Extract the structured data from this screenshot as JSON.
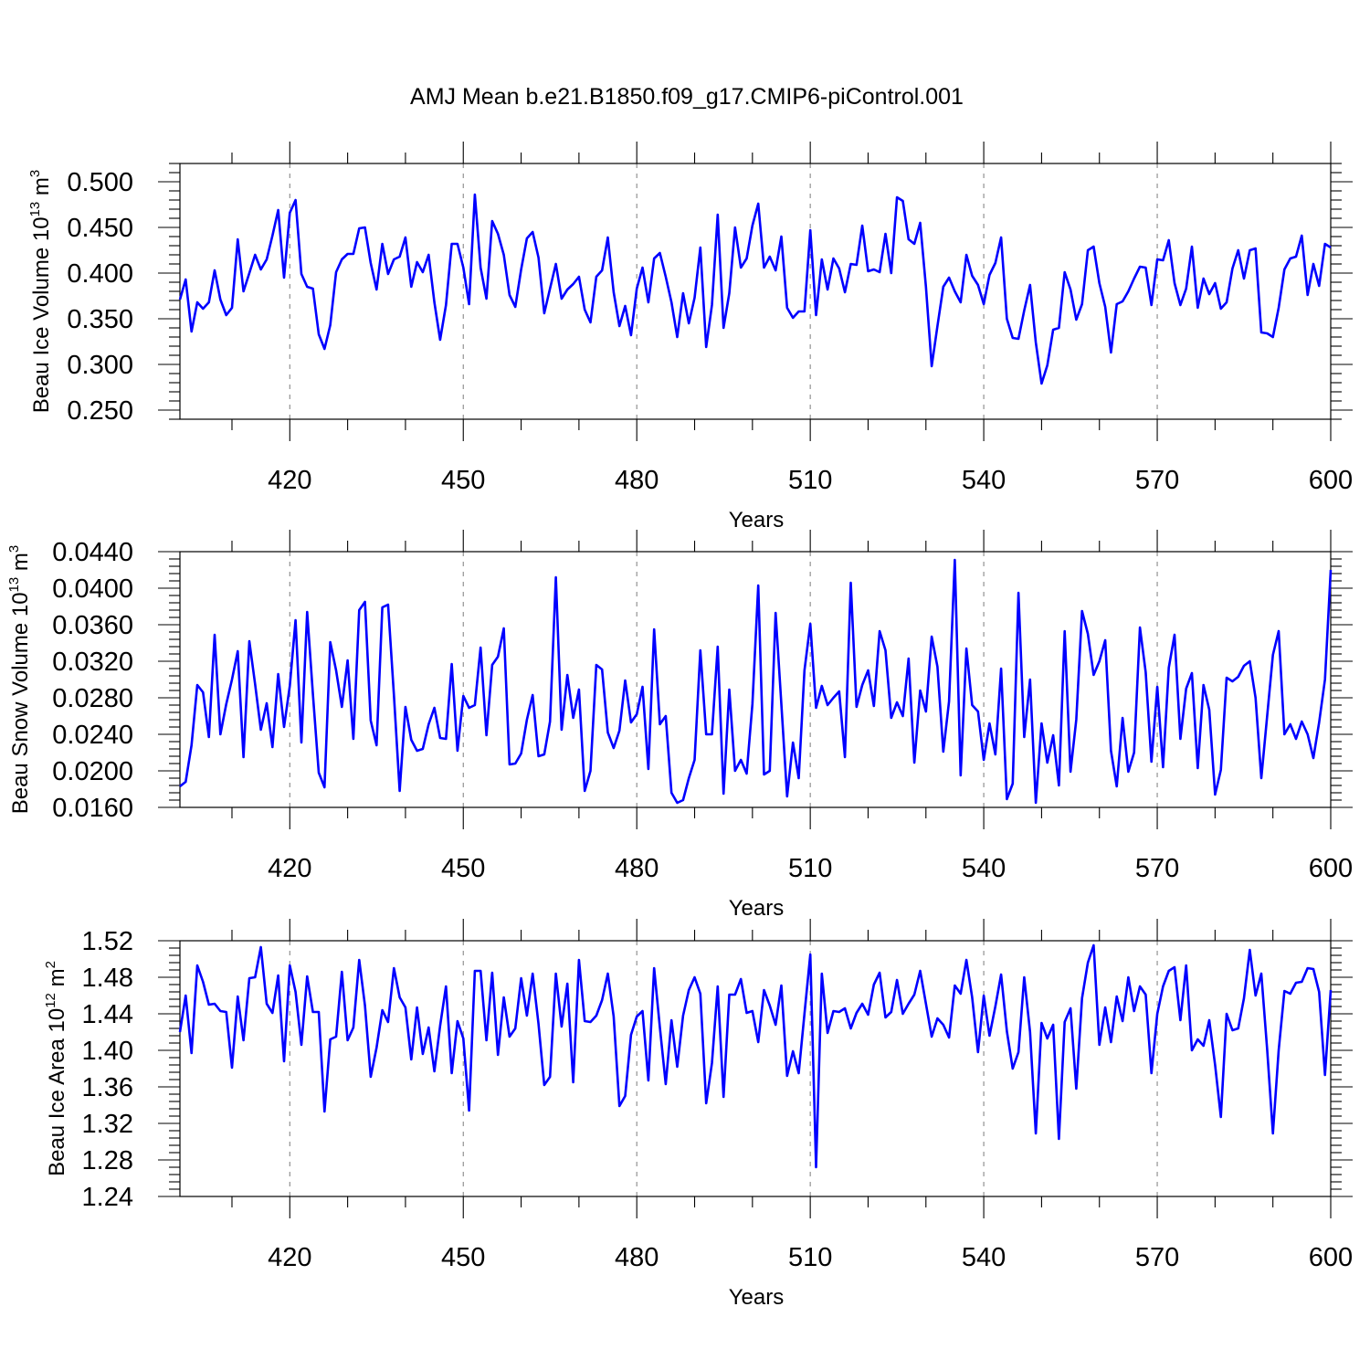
{
  "title": "AMJ Mean b.e21.B1850.f09_g17.CMIP6-piControl.001",
  "chart_data": [
    {
      "type": "line",
      "ylabel": "Beau Ice Volume 10^13 m^3",
      "ylabel_base": "Beau Ice Volume 10",
      "ylabel_exp": "13",
      "ylabel_unit": " m",
      "ylabel_unit_exp": "3",
      "xlabel": "Years",
      "xlim": [
        401,
        600
      ],
      "ylim": [
        0.24,
        0.52
      ],
      "yticks": [
        0.25,
        0.3,
        0.35,
        0.4,
        0.45,
        0.5
      ],
      "yticklabels": [
        "0.250",
        "0.300",
        "0.350",
        "0.400",
        "0.450",
        "0.500"
      ],
      "xticks": [
        420,
        450,
        480,
        510,
        540,
        570,
        600
      ],
      "xticklabels": [
        "420",
        "450",
        "480",
        "510",
        "540",
        "570",
        "600"
      ],
      "grid": "dashed vertical at x ticks",
      "color": "#0000ff",
      "series": [
        {
          "x_start": 401,
          "values": [
            0.371,
            0.393,
            0.336,
            0.368,
            0.361,
            0.368,
            0.403,
            0.371,
            0.354,
            0.362,
            0.437,
            0.38,
            0.4,
            0.42,
            0.404,
            0.415,
            0.441,
            0.469,
            0.395,
            0.466,
            0.48,
            0.399,
            0.385,
            0.383,
            0.333,
            0.317,
            0.343,
            0.401,
            0.415,
            0.421,
            0.421,
            0.449,
            0.45,
            0.411,
            0.382,
            0.432,
            0.399,
            0.415,
            0.418,
            0.439,
            0.385,
            0.412,
            0.401,
            0.42,
            0.368,
            0.327,
            0.365,
            0.432,
            0.432,
            0.406,
            0.366,
            0.486,
            0.406,
            0.372,
            0.457,
            0.443,
            0.42,
            0.376,
            0.363,
            0.404,
            0.438,
            0.445,
            0.417,
            0.356,
            0.383,
            0.41,
            0.372,
            0.382,
            0.388,
            0.396,
            0.36,
            0.346,
            0.396,
            0.403,
            0.439,
            0.379,
            0.342,
            0.364,
            0.332,
            0.383,
            0.406,
            0.368,
            0.416,
            0.422,
            0.396,
            0.368,
            0.33,
            0.378,
            0.345,
            0.373,
            0.428,
            0.319,
            0.365,
            0.464,
            0.34,
            0.378,
            0.45,
            0.406,
            0.416,
            0.452,
            0.476,
            0.406,
            0.418,
            0.403,
            0.44,
            0.362,
            0.351,
            0.358,
            0.358,
            0.447,
            0.354,
            0.415,
            0.382,
            0.416,
            0.405,
            0.379,
            0.41,
            0.409,
            0.452,
            0.402,
            0.404,
            0.401,
            0.443,
            0.4,
            0.483,
            0.479,
            0.437,
            0.432,
            0.455,
            0.385,
            0.298,
            0.342,
            0.385,
            0.395,
            0.38,
            0.368,
            0.42,
            0.397,
            0.387,
            0.366,
            0.398,
            0.411,
            0.439,
            0.35,
            0.329,
            0.328,
            0.359,
            0.387,
            0.324,
            0.279,
            0.299,
            0.338,
            0.34,
            0.401,
            0.382,
            0.349,
            0.366,
            0.425,
            0.429,
            0.389,
            0.363,
            0.313,
            0.366,
            0.369,
            0.38,
            0.394,
            0.407,
            0.406,
            0.365,
            0.415,
            0.414,
            0.436,
            0.389,
            0.365,
            0.383,
            0.429,
            0.362,
            0.394,
            0.377,
            0.389,
            0.361,
            0.368,
            0.405,
            0.425,
            0.394,
            0.425,
            0.427,
            0.335,
            0.334,
            0.33,
            0.362,
            0.404,
            0.416,
            0.418,
            0.441,
            0.376,
            0.41,
            0.386,
            0.432,
            0.428
          ]
        }
      ]
    },
    {
      "type": "line",
      "ylabel": "Beau Snow Volume 10^13 m^3",
      "ylabel_base": "Beau Snow Volume 10",
      "ylabel_exp": "13",
      "ylabel_unit": " m",
      "ylabel_unit_exp": "3",
      "xlabel": "Years",
      "xlim": [
        401,
        600
      ],
      "ylim": [
        0.016,
        0.044
      ],
      "yticks": [
        0.016,
        0.02,
        0.024,
        0.028,
        0.032,
        0.036,
        0.04,
        0.044
      ],
      "yticklabels": [
        "0.0160",
        "0.0200",
        "0.0240",
        "0.0280",
        "0.0320",
        "0.0360",
        "0.0400",
        "0.0440"
      ],
      "xticks": [
        420,
        450,
        480,
        510,
        540,
        570,
        600
      ],
      "xticklabels": [
        "420",
        "450",
        "480",
        "510",
        "540",
        "570",
        "600"
      ],
      "grid": "dashed vertical at x ticks",
      "color": "#0000ff",
      "series": [
        {
          "x_start": 401,
          "values": [
            0.0183,
            0.0188,
            0.0228,
            0.0294,
            0.0286,
            0.0237,
            0.0349,
            0.024,
            0.0273,
            0.03,
            0.0331,
            0.0215,
            0.0342,
            0.0295,
            0.0245,
            0.0274,
            0.0226,
            0.0306,
            0.0248,
            0.0293,
            0.0365,
            0.0231,
            0.0374,
            0.0284,
            0.0198,
            0.0182,
            0.0341,
            0.031,
            0.027,
            0.0321,
            0.0235,
            0.0376,
            0.0385,
            0.0255,
            0.0228,
            0.0379,
            0.0382,
            0.0283,
            0.0178,
            0.027,
            0.0234,
            0.0222,
            0.0224,
            0.0251,
            0.0269,
            0.0236,
            0.0235,
            0.0317,
            0.0222,
            0.0282,
            0.0269,
            0.0272,
            0.0335,
            0.0239,
            0.0316,
            0.0325,
            0.0356,
            0.0207,
            0.0208,
            0.0219,
            0.0256,
            0.0283,
            0.0216,
            0.0218,
            0.0254,
            0.0412,
            0.0245,
            0.0305,
            0.0258,
            0.0289,
            0.0178,
            0.02,
            0.0316,
            0.0311,
            0.0242,
            0.0225,
            0.0244,
            0.0299,
            0.0253,
            0.0262,
            0.0292,
            0.0202,
            0.0355,
            0.0251,
            0.026,
            0.0176,
            0.0165,
            0.0168,
            0.0192,
            0.0212,
            0.0332,
            0.024,
            0.024,
            0.0336,
            0.0175,
            0.0289,
            0.02,
            0.0212,
            0.0197,
            0.0273,
            0.0403,
            0.0196,
            0.02,
            0.0373,
            0.0273,
            0.0172,
            0.0231,
            0.0192,
            0.031,
            0.0361,
            0.0269,
            0.0293,
            0.0272,
            0.028,
            0.0287,
            0.0215,
            0.0406,
            0.027,
            0.0294,
            0.031,
            0.0271,
            0.0353,
            0.0332,
            0.0258,
            0.0275,
            0.026,
            0.0323,
            0.0209,
            0.0288,
            0.0265,
            0.0347,
            0.0314,
            0.0221,
            0.0276,
            0.0431,
            0.0195,
            0.0334,
            0.0272,
            0.0265,
            0.0212,
            0.0252,
            0.0218,
            0.0312,
            0.0169,
            0.0186,
            0.0395,
            0.0237,
            0.03,
            0.0165,
            0.0252,
            0.0209,
            0.0239,
            0.0184,
            0.0353,
            0.0199,
            0.0256,
            0.0375,
            0.035,
            0.0305,
            0.032,
            0.0343,
            0.0222,
            0.0183,
            0.0258,
            0.0199,
            0.022,
            0.0357,
            0.0308,
            0.021,
            0.0292,
            0.0204,
            0.0313,
            0.0349,
            0.0235,
            0.029,
            0.0307,
            0.0203,
            0.0294,
            0.0267,
            0.0174,
            0.0201,
            0.0302,
            0.0298,
            0.0303,
            0.0315,
            0.032,
            0.028,
            0.0192,
            0.026,
            0.0327,
            0.0353,
            0.024,
            0.0251,
            0.0235,
            0.0254,
            0.024,
            0.0214,
            0.0253,
            0.03,
            0.042
          ]
        }
      ]
    },
    {
      "type": "line",
      "ylabel": "Beau Ice Area 10^12 m^2",
      "ylabel_base": "Beau Ice Area 10",
      "ylabel_exp": "12",
      "ylabel_unit": " m",
      "ylabel_unit_exp": "2",
      "xlabel": "Years",
      "xlim": [
        401,
        600
      ],
      "ylim": [
        1.24,
        1.52
      ],
      "yticks": [
        1.24,
        1.28,
        1.32,
        1.36,
        1.4,
        1.44,
        1.48,
        1.52
      ],
      "yticklabels": [
        "1.24",
        "1.28",
        "1.32",
        "1.36",
        "1.40",
        "1.44",
        "1.48",
        "1.52"
      ],
      "xticks": [
        420,
        450,
        480,
        510,
        540,
        570,
        600
      ],
      "xticklabels": [
        "420",
        "450",
        "480",
        "510",
        "540",
        "570",
        "600"
      ],
      "grid": "dashed vertical at x ticks",
      "color": "#0000ff",
      "series": [
        {
          "x_start": 401,
          "values": [
            1.42,
            1.46,
            1.397,
            1.493,
            1.475,
            1.45,
            1.451,
            1.443,
            1.442,
            1.381,
            1.459,
            1.411,
            1.479,
            1.48,
            1.513,
            1.451,
            1.441,
            1.482,
            1.388,
            1.493,
            1.464,
            1.406,
            1.481,
            1.442,
            1.442,
            1.333,
            1.412,
            1.415,
            1.486,
            1.411,
            1.425,
            1.499,
            1.449,
            1.371,
            1.403,
            1.444,
            1.431,
            1.49,
            1.458,
            1.447,
            1.39,
            1.447,
            1.396,
            1.425,
            1.377,
            1.427,
            1.47,
            1.375,
            1.432,
            1.413,
            1.334,
            1.487,
            1.487,
            1.411,
            1.485,
            1.395,
            1.458,
            1.415,
            1.424,
            1.479,
            1.438,
            1.484,
            1.429,
            1.362,
            1.371,
            1.484,
            1.426,
            1.473,
            1.365,
            1.499,
            1.432,
            1.431,
            1.438,
            1.455,
            1.484,
            1.437,
            1.339,
            1.35,
            1.417,
            1.437,
            1.443,
            1.367,
            1.49,
            1.425,
            1.363,
            1.433,
            1.382,
            1.438,
            1.466,
            1.48,
            1.462,
            1.342,
            1.386,
            1.47,
            1.349,
            1.461,
            1.461,
            1.478,
            1.441,
            1.443,
            1.409,
            1.466,
            1.449,
            1.428,
            1.471,
            1.372,
            1.399,
            1.375,
            1.44,
            1.505,
            1.272,
            1.484,
            1.419,
            1.443,
            1.442,
            1.446,
            1.424,
            1.441,
            1.451,
            1.439,
            1.472,
            1.485,
            1.436,
            1.442,
            1.477,
            1.44,
            1.451,
            1.461,
            1.487,
            1.451,
            1.415,
            1.435,
            1.428,
            1.414,
            1.471,
            1.462,
            1.499,
            1.458,
            1.398,
            1.46,
            1.416,
            1.448,
            1.483,
            1.421,
            1.38,
            1.398,
            1.48,
            1.42,
            1.309,
            1.43,
            1.413,
            1.428,
            1.303,
            1.431,
            1.446,
            1.358,
            1.457,
            1.496,
            1.515,
            1.406,
            1.447,
            1.409,
            1.459,
            1.432,
            1.48,
            1.443,
            1.47,
            1.461,
            1.375,
            1.44,
            1.47,
            1.487,
            1.491,
            1.433,
            1.493,
            1.4,
            1.412,
            1.405,
            1.433,
            1.384,
            1.327,
            1.44,
            1.422,
            1.424,
            1.457,
            1.51,
            1.46,
            1.484,
            1.401,
            1.309,
            1.4,
            1.465,
            1.462,
            1.474,
            1.475,
            1.49,
            1.489,
            1.464,
            1.373,
            1.466
          ]
        }
      ]
    }
  ]
}
